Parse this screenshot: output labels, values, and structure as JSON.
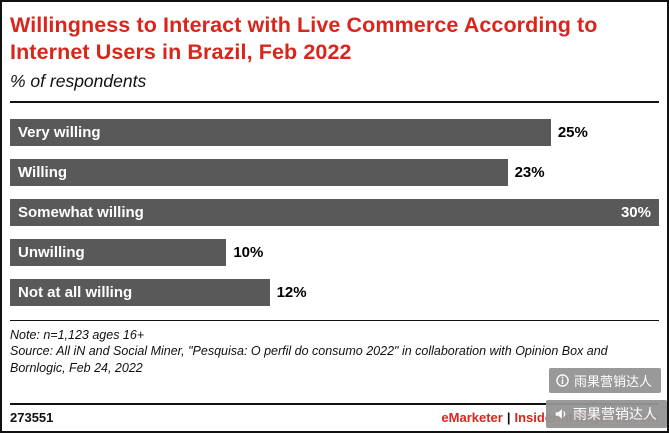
{
  "header": {
    "title": "Willingness to Interact with Live Commerce According to Internet Users in Brazil, Feb 2022",
    "subtitle": "% of respondents"
  },
  "chart_data": {
    "type": "bar",
    "orientation": "horizontal",
    "title": "Willingness to Interact with Live Commerce According to Internet Users in Brazil, Feb 2022",
    "subtitle": "% of respondents",
    "categories": [
      "Very willing",
      "Willing",
      "Somewhat willing",
      "Unwilling",
      "Not at all willing"
    ],
    "values": [
      25,
      23,
      30,
      10,
      12
    ],
    "value_labels": [
      "25%",
      "23%",
      "30%",
      "10%",
      "12%"
    ],
    "xlabel": "",
    "ylabel": "",
    "xlim": [
      0,
      30
    ],
    "grid": false,
    "legend": "none",
    "bar_color": "#595959",
    "label_color_inside": "#ffffff",
    "value_color_outside": "#000000"
  },
  "notes": {
    "note": "Note: n=1,123 ages 16+",
    "source": "Source: All iN and Social Miner, \"Pesquisa: O perfil do consumo 2022\" in collaboration with Opinion Box and Bornlogic, Feb 24, 2022"
  },
  "footer": {
    "id": "273551",
    "brand": "eMarketer",
    "separator": "|",
    "site": "InsiderIntelligence.com"
  },
  "watermarks": {
    "badge1": {
      "icon": "info-icon",
      "text": "雨果营销达人"
    },
    "badge2": {
      "icon": "speaker-icon",
      "text": "雨果营销达人"
    }
  },
  "colors": {
    "accent_red": "#d9261c",
    "bar_gray": "#595959",
    "watermark_gray": "#949494"
  }
}
